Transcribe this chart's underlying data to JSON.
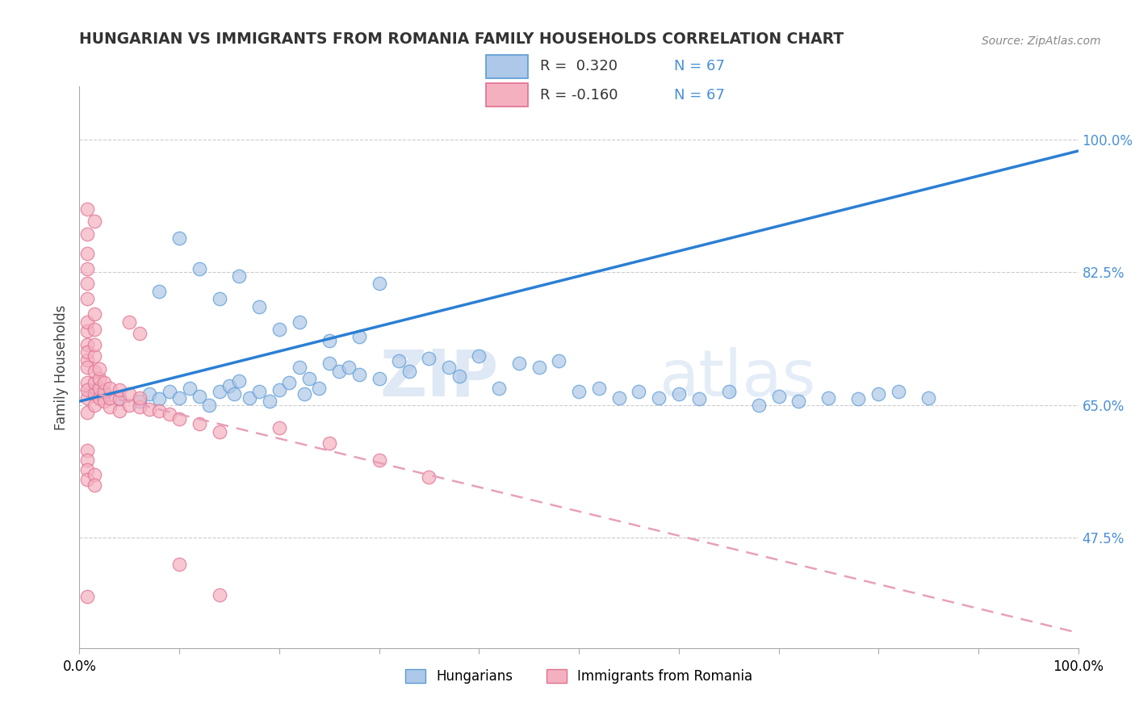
{
  "title": "HUNGARIAN VS IMMIGRANTS FROM ROMANIA FAMILY HOUSEHOLDS CORRELATION CHART",
  "source": "Source: ZipAtlas.com",
  "ylabel": "Family Households",
  "R_hungarian": 0.32,
  "N_hungarian": 67,
  "R_romania": -0.16,
  "N_romania": 67,
  "xlim": [
    0.0,
    1.0
  ],
  "ylim": [
    0.33,
    1.07
  ],
  "yticks": [
    0.475,
    0.65,
    0.825,
    1.0
  ],
  "ytick_labels": [
    "47.5%",
    "65.0%",
    "82.5%",
    "100.0%"
  ],
  "watermark_zip": "ZIP",
  "watermark_atlas": "atlas",
  "hungarian_color": "#adc8e8",
  "romanian_color": "#f5b0c0",
  "hungarian_edge_color": "#5b9bd5",
  "romanian_edge_color": "#e07090",
  "hungarian_line_color": "#2b7fd4",
  "romanian_line_color": "#e8a0b8",
  "hungarian_points": [
    [
      0.015,
      0.67
    ],
    [
      0.025,
      0.665
    ],
    [
      0.04,
      0.66
    ],
    [
      0.06,
      0.655
    ],
    [
      0.07,
      0.665
    ],
    [
      0.08,
      0.658
    ],
    [
      0.09,
      0.668
    ],
    [
      0.1,
      0.66
    ],
    [
      0.11,
      0.672
    ],
    [
      0.12,
      0.662
    ],
    [
      0.13,
      0.65
    ],
    [
      0.14,
      0.668
    ],
    [
      0.15,
      0.675
    ],
    [
      0.155,
      0.665
    ],
    [
      0.16,
      0.682
    ],
    [
      0.17,
      0.66
    ],
    [
      0.18,
      0.668
    ],
    [
      0.19,
      0.655
    ],
    [
      0.2,
      0.67
    ],
    [
      0.21,
      0.68
    ],
    [
      0.22,
      0.7
    ],
    [
      0.225,
      0.665
    ],
    [
      0.23,
      0.685
    ],
    [
      0.24,
      0.672
    ],
    [
      0.25,
      0.705
    ],
    [
      0.26,
      0.695
    ],
    [
      0.27,
      0.7
    ],
    [
      0.28,
      0.69
    ],
    [
      0.3,
      0.685
    ],
    [
      0.32,
      0.708
    ],
    [
      0.33,
      0.695
    ],
    [
      0.35,
      0.712
    ],
    [
      0.37,
      0.7
    ],
    [
      0.38,
      0.688
    ],
    [
      0.4,
      0.715
    ],
    [
      0.42,
      0.672
    ],
    [
      0.44,
      0.705
    ],
    [
      0.46,
      0.7
    ],
    [
      0.48,
      0.708
    ],
    [
      0.5,
      0.668
    ],
    [
      0.52,
      0.672
    ],
    [
      0.54,
      0.66
    ],
    [
      0.56,
      0.668
    ],
    [
      0.58,
      0.66
    ],
    [
      0.6,
      0.665
    ],
    [
      0.62,
      0.658
    ],
    [
      0.65,
      0.668
    ],
    [
      0.68,
      0.65
    ],
    [
      0.7,
      0.662
    ],
    [
      0.72,
      0.655
    ],
    [
      0.75,
      0.66
    ],
    [
      0.78,
      0.658
    ],
    [
      0.8,
      0.665
    ],
    [
      0.82,
      0.668
    ],
    [
      0.85,
      0.66
    ],
    [
      0.08,
      0.8
    ],
    [
      0.1,
      0.87
    ],
    [
      0.12,
      0.83
    ],
    [
      0.14,
      0.79
    ],
    [
      0.16,
      0.82
    ],
    [
      0.18,
      0.78
    ],
    [
      0.2,
      0.75
    ],
    [
      0.22,
      0.76
    ],
    [
      0.25,
      0.735
    ],
    [
      0.28,
      0.74
    ],
    [
      0.3,
      0.81
    ]
  ],
  "romanian_points": [
    [
      0.008,
      0.66
    ],
    [
      0.008,
      0.71
    ],
    [
      0.008,
      0.73
    ],
    [
      0.008,
      0.748
    ],
    [
      0.008,
      0.72
    ],
    [
      0.008,
      0.7
    ],
    [
      0.008,
      0.68
    ],
    [
      0.008,
      0.67
    ],
    [
      0.008,
      0.76
    ],
    [
      0.008,
      0.79
    ],
    [
      0.008,
      0.81
    ],
    [
      0.008,
      0.83
    ],
    [
      0.008,
      0.85
    ],
    [
      0.008,
      0.875
    ],
    [
      0.008,
      0.64
    ],
    [
      0.015,
      0.665
    ],
    [
      0.015,
      0.68
    ],
    [
      0.015,
      0.695
    ],
    [
      0.015,
      0.715
    ],
    [
      0.015,
      0.73
    ],
    [
      0.015,
      0.75
    ],
    [
      0.015,
      0.77
    ],
    [
      0.015,
      0.65
    ],
    [
      0.02,
      0.66
    ],
    [
      0.02,
      0.672
    ],
    [
      0.02,
      0.685
    ],
    [
      0.02,
      0.698
    ],
    [
      0.025,
      0.655
    ],
    [
      0.025,
      0.668
    ],
    [
      0.025,
      0.68
    ],
    [
      0.03,
      0.648
    ],
    [
      0.03,
      0.66
    ],
    [
      0.03,
      0.672
    ],
    [
      0.04,
      0.642
    ],
    [
      0.04,
      0.658
    ],
    [
      0.04,
      0.67
    ],
    [
      0.05,
      0.65
    ],
    [
      0.05,
      0.665
    ],
    [
      0.06,
      0.648
    ],
    [
      0.06,
      0.66
    ],
    [
      0.07,
      0.645
    ],
    [
      0.08,
      0.642
    ],
    [
      0.09,
      0.638
    ],
    [
      0.1,
      0.632
    ],
    [
      0.12,
      0.625
    ],
    [
      0.14,
      0.615
    ],
    [
      0.008,
      0.59
    ],
    [
      0.008,
      0.578
    ],
    [
      0.008,
      0.565
    ],
    [
      0.008,
      0.552
    ],
    [
      0.015,
      0.558
    ],
    [
      0.015,
      0.545
    ],
    [
      0.008,
      0.398
    ],
    [
      0.1,
      0.44
    ],
    [
      0.14,
      0.4
    ],
    [
      0.05,
      0.76
    ],
    [
      0.06,
      0.745
    ],
    [
      0.008,
      0.908
    ],
    [
      0.015,
      0.892
    ],
    [
      0.2,
      0.62
    ],
    [
      0.25,
      0.6
    ],
    [
      0.3,
      0.578
    ],
    [
      0.35,
      0.555
    ]
  ],
  "legend_hungarian_label": "Hungarians",
  "legend_romanian_label": "Immigrants from Romania",
  "background_color": "#ffffff",
  "grid_color": "#cccccc"
}
